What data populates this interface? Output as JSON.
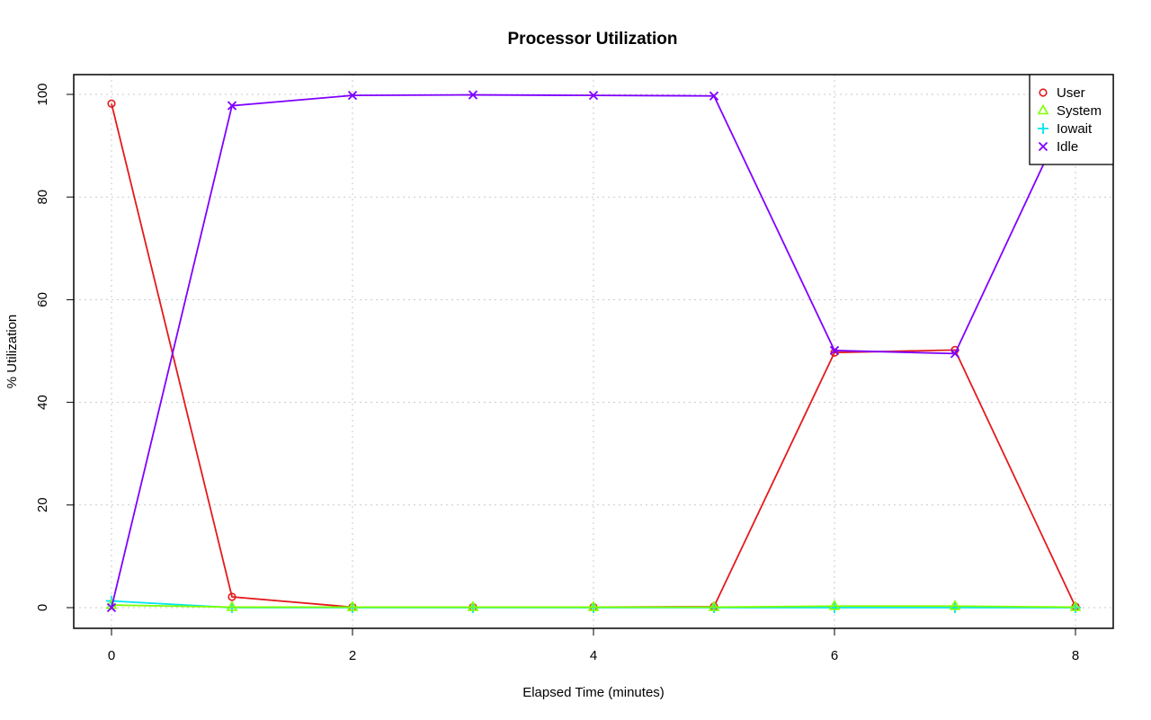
{
  "chart_data": {
    "type": "line",
    "title": "Processor Utilization",
    "xlabel": "Elapsed Time (minutes)",
    "ylabel": "% Utilization",
    "xlim": [
      0,
      8
    ],
    "ylim": [
      0,
      100
    ],
    "x_ticks": [
      0,
      2,
      4,
      6,
      8
    ],
    "y_ticks": [
      0,
      20,
      40,
      60,
      80,
      100
    ],
    "grid": true,
    "legend_position": "top-right",
    "x": [
      0,
      1,
      2,
      3,
      4,
      5,
      6,
      7,
      8
    ],
    "series": [
      {
        "name": "User",
        "color": "#e41a1c",
        "marker": "circle",
        "values": [
          98.2,
          2.1,
          0.1,
          0.1,
          0.1,
          0.2,
          49.7,
          50.2,
          0.2
        ]
      },
      {
        "name": "System",
        "color": "#80ff00",
        "marker": "triangle",
        "values": [
          0.5,
          0.1,
          0.1,
          0.1,
          0.1,
          0.1,
          0.3,
          0.3,
          0.1
        ]
      },
      {
        "name": "Iowait",
        "color": "#00e5ee",
        "marker": "plus",
        "values": [
          1.3,
          0.0,
          0.0,
          0.0,
          0.0,
          0.0,
          0.0,
          0.0,
          0.0
        ]
      },
      {
        "name": "Idle",
        "color": "#8000ff",
        "marker": "cross",
        "values": [
          0.0,
          97.8,
          99.8,
          99.9,
          99.8,
          99.7,
          50.1,
          49.5,
          99.7
        ]
      }
    ]
  }
}
